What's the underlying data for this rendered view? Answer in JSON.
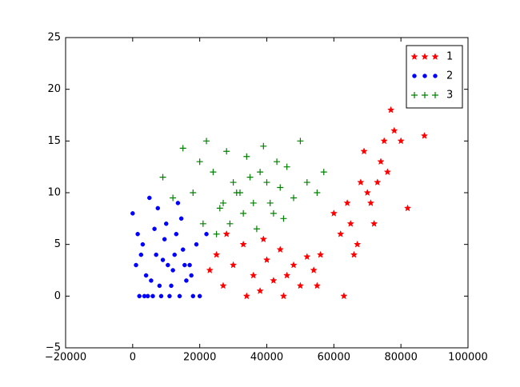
{
  "chart_data": {
    "type": "scatter",
    "xlim": [
      -20000,
      100000
    ],
    "xticks": [
      {
        "value": -20000,
        "label": "−20000"
      },
      0,
      20000,
      40000,
      60000,
      80000,
      100000
    ],
    "ylim": [
      -5,
      25
    ],
    "yticks": [
      {
        "value": -5,
        "label": "−5"
      },
      0,
      5,
      10,
      15,
      20,
      25
    ],
    "legend": "upper right",
    "series": [
      {
        "name": "1",
        "color": "#ff0000",
        "marker": "star",
        "x": [
          23000,
          25000,
          27000,
          30000,
          33000,
          36000,
          38000,
          40000,
          42000,
          44000,
          46000,
          48000,
          50000,
          52000,
          54000,
          56000,
          28000,
          34000,
          39000,
          45000,
          55000,
          60000,
          62000,
          64000,
          66000,
          68000,
          70000,
          72000,
          74000,
          76000,
          78000,
          80000,
          65000,
          69000,
          71000,
          73000,
          75000,
          77000,
          82000,
          87000,
          67000,
          63000
        ],
        "values": [
          2.5,
          4,
          1,
          3,
          5,
          2,
          0.5,
          3.5,
          1.5,
          4.5,
          2,
          3,
          1,
          3.8,
          2.5,
          4,
          6,
          0,
          5.5,
          0,
          1,
          8,
          6,
          9,
          4,
          11,
          10,
          7,
          13,
          12,
          16,
          15,
          7,
          14,
          9,
          11,
          15,
          18,
          8.5,
          15.5,
          5,
          0
        ]
      },
      {
        "name": "2",
        "color": "#0000ff",
        "marker": "circle",
        "x": [
          0,
          1000,
          2000,
          3000,
          4000,
          5000,
          6000,
          7000,
          8000,
          9000,
          10000,
          11000,
          12000,
          13000,
          14000,
          15000,
          16000,
          17000,
          18000,
          19000,
          20000,
          1500,
          3500,
          5500,
          7500,
          9500,
          11500,
          13500,
          15500,
          17500,
          2500,
          6500,
          10500,
          14500,
          4500,
          8500,
          12500,
          22000
        ],
        "values": [
          8,
          3,
          0,
          5,
          2,
          9.5,
          0,
          4,
          1,
          3.5,
          7,
          0,
          2.5,
          6,
          0,
          4.5,
          1.5,
          3,
          0,
          5,
          0,
          6,
          0,
          1.5,
          8.5,
          5.5,
          1,
          9,
          3,
          2,
          4,
          6.5,
          3,
          7.5,
          0,
          0,
          4,
          6
        ]
      },
      {
        "name": "3",
        "color": "#008000",
        "marker": "plus",
        "x": [
          9000,
          12000,
          15000,
          18000,
          20000,
          22000,
          24000,
          26000,
          28000,
          30000,
          32000,
          34000,
          36000,
          38000,
          40000,
          42000,
          44000,
          46000,
          48000,
          50000,
          52000,
          55000,
          57000,
          25000,
          29000,
          33000,
          37000,
          41000,
          45000,
          31000,
          35000,
          39000,
          27000,
          43000,
          21000
        ],
        "values": [
          11.5,
          9.5,
          14.3,
          10,
          13,
          15,
          12,
          8.5,
          14,
          11,
          10,
          13.5,
          9,
          12,
          11,
          8,
          10.5,
          12.5,
          9.5,
          15,
          11,
          10,
          12,
          6,
          7,
          8,
          6.5,
          9,
          7.5,
          10,
          11.5,
          14.5,
          9,
          13,
          7
        ]
      }
    ]
  }
}
